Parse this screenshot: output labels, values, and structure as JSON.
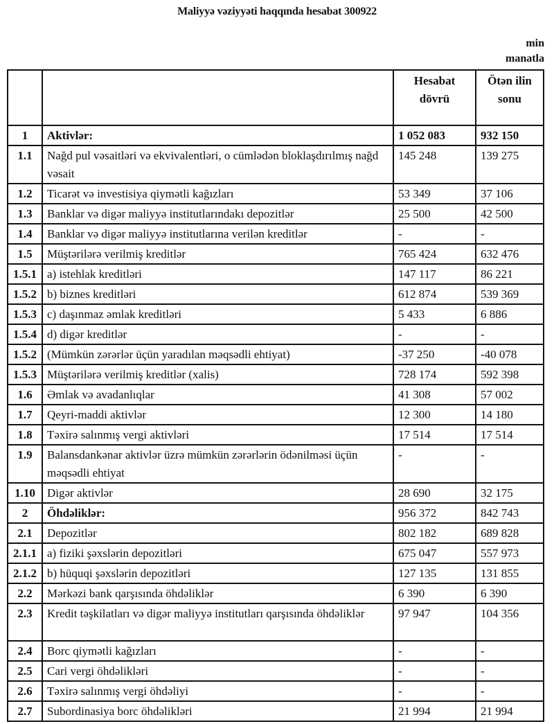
{
  "title": "Maliyyə vəziyyəti haqqında hesabat 300922",
  "unit_line1": "min",
  "unit_line2": "manatla",
  "table": {
    "headers": [
      "",
      "",
      "Hesabat dövrü",
      "Ötən ilin sonu"
    ],
    "rows": [
      {
        "num": "1",
        "label": "Aktivlər:",
        "cur": "1 052 083",
        "prev": "932 150",
        "bold_label": true,
        "bold_values": true
      },
      {
        "num": "1.1",
        "label": "Nağd pul vəsaitləri və  ekvivalentləri, o cümlədən bloklaşdırılmış nağd vəsait",
        "cur": "145 248",
        "prev": "139 275",
        "two_line": true
      },
      {
        "num": "1.2",
        "label": "Ticarət və investisiya qiymətli kağızları",
        "cur": "53 349",
        "prev": "37 106"
      },
      {
        "num": "1.3",
        "label": "Banklar və digər maliyyə institutlarındakı depozitlər",
        "cur": "25 500",
        "prev": "42 500"
      },
      {
        "num": "1.4",
        "label": "Banklar və digər maliyyə institutlarına verilən kreditlər",
        "cur": "-",
        "prev": "-"
      },
      {
        "num": "1.5",
        "label": "Müştərilərə verilmiş kreditlər",
        "cur": "765 424",
        "prev": "632 476"
      },
      {
        "num": "1.5.1",
        "label": "a) istehlak kreditləri",
        "cur": "147 117",
        "prev": "86 221"
      },
      {
        "num": "1.5.2",
        "label": "b) biznes kreditləri",
        "cur": "612 874",
        "prev": "539 369"
      },
      {
        "num": "1.5.3",
        "label": "c) daşınmaz əmlak kreditləri",
        "cur": "5 433",
        "prev": "6 886"
      },
      {
        "num": "1.5.4",
        "label": "d) digər kreditlər",
        "cur": "-",
        "prev": "-"
      },
      {
        "num": "1.5.2",
        "label": "(Mümkün zərərlər üçün yaradılan məqsədli ehtiyat)",
        "cur": "-37 250",
        "prev": "-40 078"
      },
      {
        "num": "1.5.3",
        "label": "Müştərilərə verilmiş kreditlər (xalis)",
        "cur": "728 174",
        "prev": "592 398"
      },
      {
        "num": "1.6",
        "label": "Əmlak və avadanlıqlar",
        "cur": "41 308",
        "prev": "57 002"
      },
      {
        "num": "1.7",
        "label": "Qeyri-maddi aktivlər",
        "cur": "12 300",
        "prev": "14 180"
      },
      {
        "num": "1.8",
        "label": "Təxirə salınmış vergi aktivləri",
        "cur": "17 514",
        "prev": "17 514"
      },
      {
        "num": "1.9",
        "label": "Balansdankənar aktivlər üzrə mümkün zərərlərin ödənilməsi üçün məqsədli ehtiyat",
        "cur": "-",
        "prev": "-",
        "two_line": true
      },
      {
        "num": "1.10",
        "label": "Digər aktivlər",
        "cur": "28 690",
        "prev": "32 175"
      },
      {
        "num": "2",
        "label": "Öhdəliklər:",
        "cur": "956 372",
        "prev": "842 743",
        "bold_label": true
      },
      {
        "num": "2.1",
        "label": "Depozitlər",
        "cur": "802 182",
        "prev": "689 828"
      },
      {
        "num": "2.1.1",
        "label": "a) fiziki şəxslərin depozitləri",
        "cur": "675 047",
        "prev": "557 973"
      },
      {
        "num": "2.1.2",
        "label": "b) hüquqi şəxslərin depozitləri",
        "cur": "127 135",
        "prev": "131 855"
      },
      {
        "num": "2.2",
        "label": "Mərkəzi bank qarşısında öhdəliklər",
        "cur": "6 390",
        "prev": "6 390"
      },
      {
        "num": "2.3",
        "label": "Kredit təşkilatları və digər maliyyə institutları qarşısında öhdəliklər",
        "cur": "97 947",
        "prev": "104 356",
        "two_line": true
      },
      {
        "num": "2.4",
        "label": "Borc qiymətli kağızları",
        "cur": "-",
        "prev": "-"
      },
      {
        "num": "2.5",
        "label": "Cari vergi öhdəlikləri",
        "cur": "-",
        "prev": "-"
      },
      {
        "num": "2.6",
        "label": "Təxirə salınmış vergi öhdəliyi",
        "cur": "-",
        "prev": "-"
      },
      {
        "num": "2.7",
        "label": "Subordinasiya borc öhdəlikləri",
        "cur": "21 994",
        "prev": "21 994"
      }
    ]
  }
}
